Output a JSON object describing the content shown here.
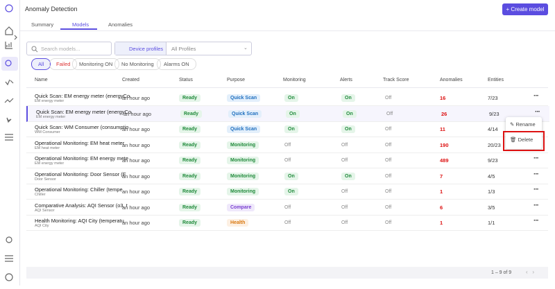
{
  "header": {
    "title": "Anomaly Detection",
    "create_button": "+ Create model"
  },
  "tabs": [
    "Summary",
    "Models",
    "Anomalies"
  ],
  "search_placeholder": "Search models...",
  "device_profiles_label": "Device profiles",
  "profiles_value": "All Profiles",
  "filters": [
    "All",
    "Failed",
    "Monitoring ON",
    "No Monitoring",
    "Alarms ON"
  ],
  "table": {
    "columns": [
      "Name",
      "Created",
      "Status",
      "Purpose",
      "Monitoring",
      "Alerts",
      "Track Score",
      "Anomalies",
      "Entities"
    ],
    "rows": [
      {
        "name": "Quick Scan: EM energy meter (energyCo",
        "device": "EM energy meter",
        "created": "an hour ago",
        "status": "Ready",
        "purpose": "Quick Scan",
        "monitoring": "On",
        "alerts": "On",
        "track_score": "Off",
        "anomalies": 16,
        "entities": "7/23"
      },
      {
        "name": "Quick Scan: EM energy meter (energyCo",
        "device": "EM energy meter",
        "created": "an hour ago",
        "status": "Ready",
        "purpose": "Quick Scan",
        "monitoring": "On",
        "alerts": "On",
        "track_score": "Off",
        "anomalies": 26,
        "entities": "9/23"
      },
      {
        "name": "Quick Scan: WM Consumer (consumptio",
        "device": "WM Consumer",
        "created": "an hour ago",
        "status": "Ready",
        "purpose": "Quick Scan",
        "monitoring": "On",
        "alerts": "On",
        "track_score": "Off",
        "anomalies": 11,
        "entities": "4/14"
      },
      {
        "name": "Operational Monitoring: EM heat meter",
        "device": "EM heat meter",
        "created": "an hour ago",
        "status": "Ready",
        "purpose": "Monitoring",
        "monitoring": "Off",
        "alerts": "Off",
        "track_score": "Off",
        "anomalies": 190,
        "entities": "20/23"
      },
      {
        "name": "Operational Monitoring: EM energy mete",
        "device": "EM energy meter",
        "created": "an hour ago",
        "status": "Ready",
        "purpose": "Monitoring",
        "monitoring": "Off",
        "alerts": "Off",
        "track_score": "Off",
        "anomalies": 489,
        "entities": "9/23"
      },
      {
        "name": "Operational Monitoring: Door Sensor (E",
        "device": "Door Sensor",
        "created": "an hour ago",
        "status": "Ready",
        "purpose": "Monitoring",
        "monitoring": "On",
        "alerts": "On",
        "track_score": "Off",
        "anomalies": 7,
        "entities": "4/5"
      },
      {
        "name": "Operational Monitoring: Chiller (tempe",
        "device": "Chiller",
        "created": "an hour ago",
        "status": "Ready",
        "purpose": "Monitoring",
        "monitoring": "On",
        "alerts": "Off",
        "track_score": "Off",
        "anomalies": 1,
        "entities": "1/3"
      },
      {
        "name": "Comparative Analysis: AQI Sensor (o3, t",
        "device": "AQI Sensor",
        "created": "an hour ago",
        "status": "Ready",
        "purpose": "Compare",
        "monitoring": "Off",
        "alerts": "Off",
        "track_score": "Off",
        "anomalies": 6,
        "entities": "3/5"
      },
      {
        "name": "Health Monitoring: AQI City (temperatu",
        "device": "AQI City",
        "created": "an hour ago",
        "status": "Ready",
        "purpose": "Health",
        "monitoring": "Off",
        "alerts": "Off",
        "track_score": "Off",
        "anomalies": 1,
        "entities": "1/1"
      }
    ]
  },
  "context_menu": [
    "Rename",
    "Delete"
  ],
  "pagination": "1 – 9 of 9"
}
